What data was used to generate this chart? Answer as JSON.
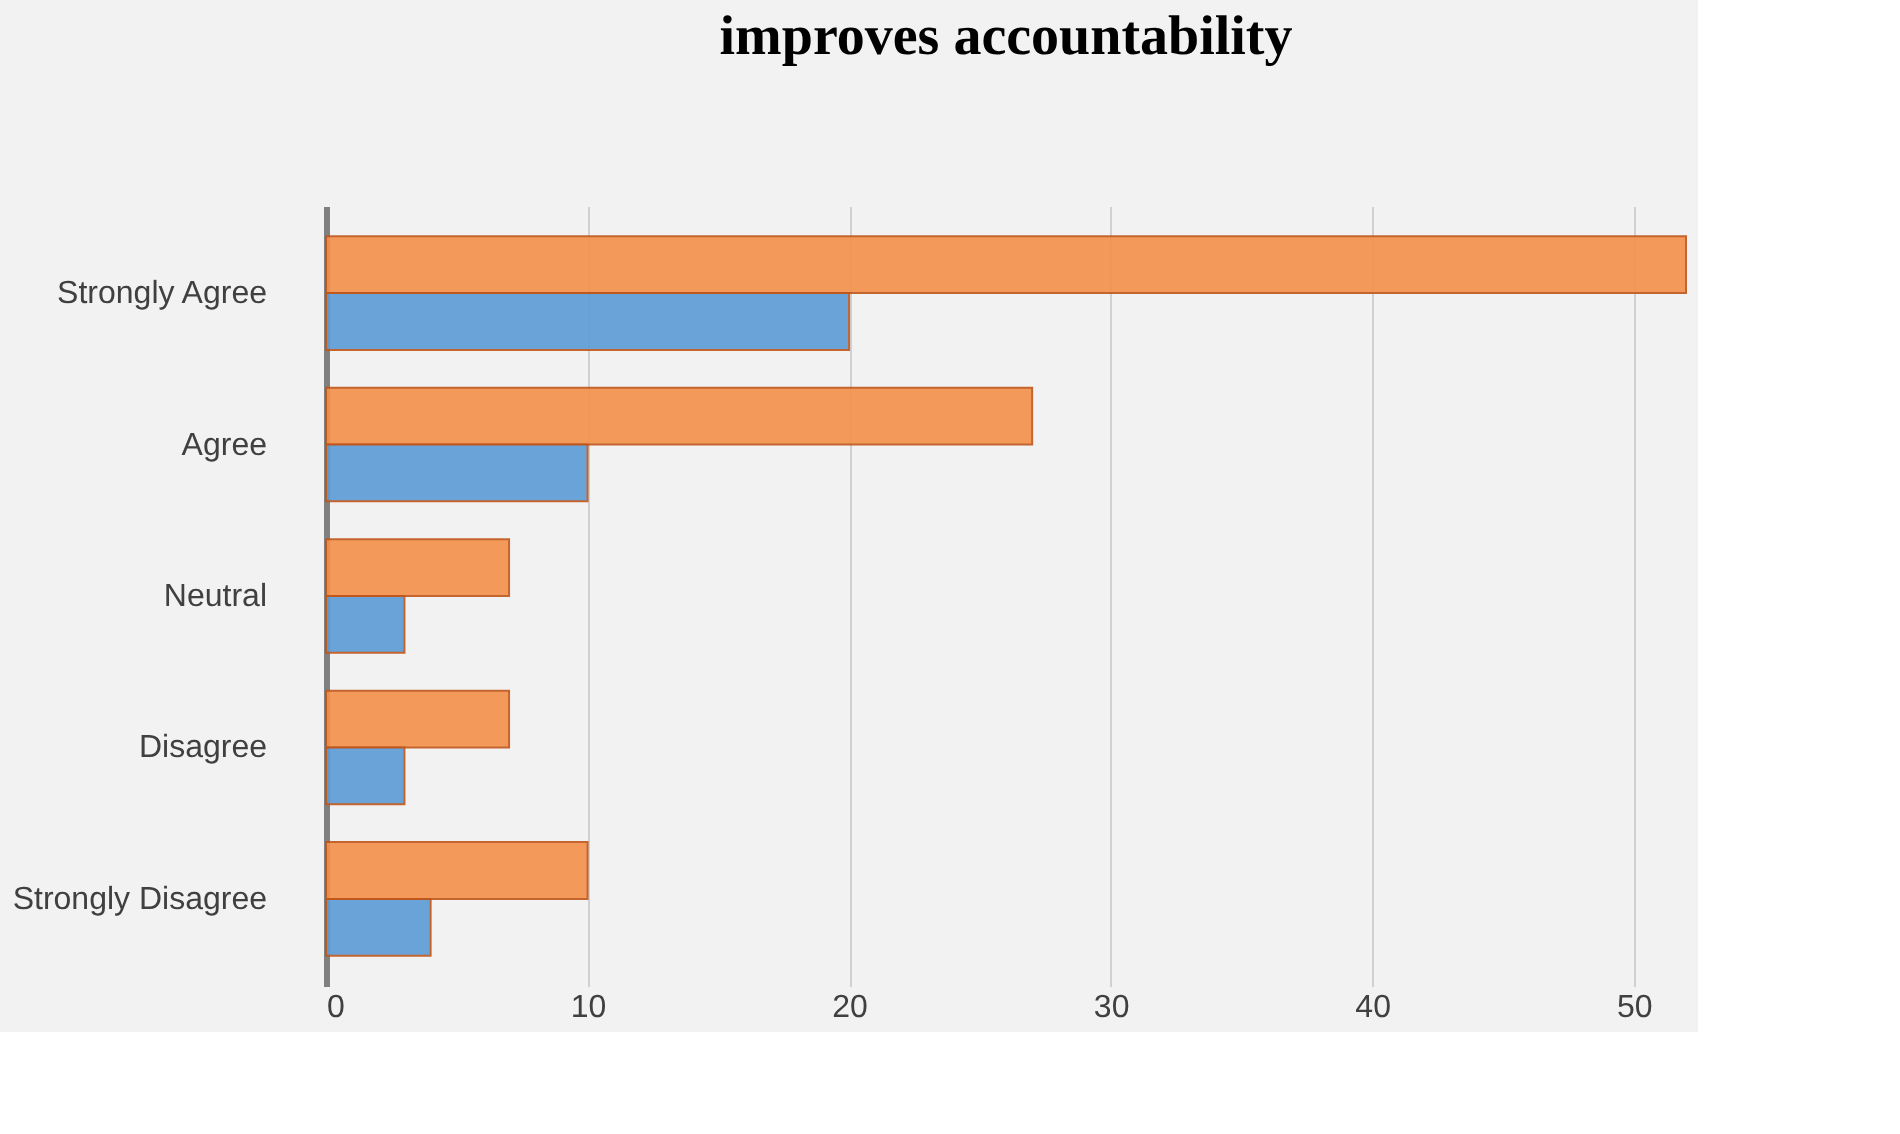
{
  "chart_data": {
    "type": "bar",
    "orientation": "horizontal",
    "title": "improves accountability",
    "categories": [
      "Strongly Agree",
      "Agree",
      "Neutral",
      "Disagree",
      "Strongly Disagree"
    ],
    "series": [
      {
        "color": "#f4914a",
        "values": [
          52,
          27,
          7,
          7,
          10
        ]
      },
      {
        "color": "#5b9bd5",
        "values": [
          20,
          10,
          3,
          3,
          4
        ]
      }
    ],
    "xlim": [
      0,
      52
    ],
    "xticks": [
      0,
      10,
      20,
      30,
      40,
      50
    ],
    "grid": "x",
    "legend": false
  }
}
